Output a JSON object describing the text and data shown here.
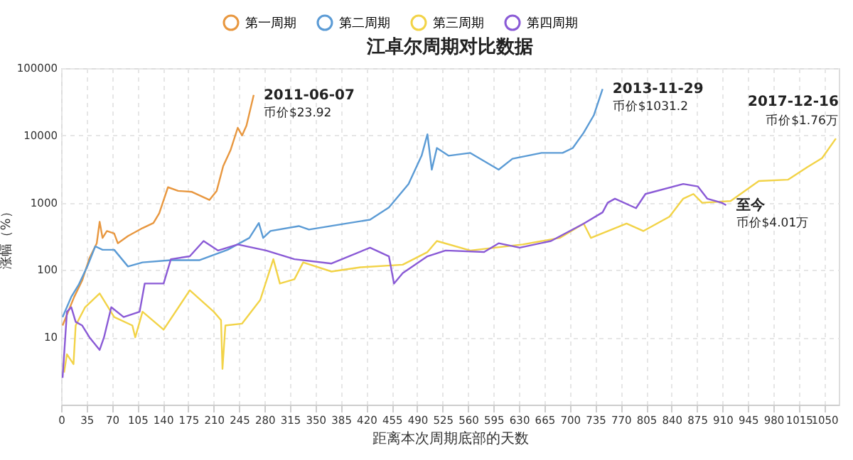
{
  "chart_data": {
    "type": "line",
    "title": "江卓尔周期对比数据",
    "xlabel": "距离本次周期底部的天数",
    "ylabel": "涨幅（%）",
    "log": "y",
    "grid": true,
    "legend": "top",
    "marker": "none",
    "line_style": "solid",
    "xlim": [
      0,
      1070
    ],
    "xticks": [
      0,
      35,
      70,
      105,
      140,
      175,
      210,
      245,
      280,
      315,
      350,
      385,
      420,
      455,
      490,
      525,
      560,
      595,
      630,
      665,
      700,
      735,
      770,
      805,
      840,
      875,
      910,
      945,
      980,
      1015,
      1050
    ],
    "ylim": [
      1,
      100000
    ],
    "yticks": [
      {
        "value": 1,
        "label": null
      },
      10,
      100,
      1000,
      10000,
      100000
    ],
    "series": [
      {
        "name": "第一周期",
        "color": "#e8973f",
        "x": [
          2,
          18,
          29,
          39,
          49,
          53,
          57,
          63,
          73,
          78,
          92,
          112,
          127,
          135,
          147,
          161,
          180,
          204,
          214,
          223,
          233,
          243,
          249,
          255,
          265
        ],
        "values": [
          15,
          40,
          70,
          150,
          250,
          520,
          300,
          380,
          350,
          250,
          320,
          420,
          500,
          700,
          1700,
          1500,
          1450,
          1100,
          1500,
          3500,
          6000,
          13000,
          10000,
          14000,
          40000
        ]
      },
      {
        "name": "第二周期",
        "color": "#5b9bd5",
        "x": [
          2,
          14,
          24,
          37,
          47,
          57,
          73,
          92,
          112,
          151,
          190,
          229,
          259,
          272,
          278,
          288,
          327,
          341,
          386,
          425,
          451,
          478,
          496,
          504,
          510,
          517,
          533,
          563,
          602,
          621,
          661,
          690,
          704,
          719,
          733,
          745
        ],
        "values": [
          20,
          40,
          60,
          120,
          225,
          200,
          200,
          113,
          130,
          140,
          140,
          200,
          300,
          500,
          300,
          380,
          450,
          400,
          480,
          560,
          850,
          1900,
          5000,
          10400,
          3100,
          6500,
          5000,
          5500,
          3100,
          4500,
          5500,
          5500,
          6500,
          11000,
          20000,
          49000
        ]
      },
      {
        "name": "第三周期",
        "color": "#f2d347",
        "x": [
          4,
          8,
          17,
          20,
          33,
          53,
          73,
          98,
          102,
          112,
          141,
          177,
          210,
          220,
          222,
          226,
          249,
          274,
          292,
          301,
          321,
          333,
          372,
          412,
          470,
          504,
          517,
          563,
          635,
          686,
          719,
          729,
          778,
          801,
          837,
          856,
          870,
          882,
          921,
          960,
          1000,
          1027,
          1047,
          1066
        ],
        "values": [
          3,
          5.6,
          4,
          15,
          28,
          45,
          20,
          15,
          10,
          24,
          13,
          50,
          24,
          18,
          3.4,
          15,
          16,
          36,
          145,
          63,
          73,
          130,
          95,
          110,
          120,
          185,
          270,
          195,
          240,
          300,
          490,
          300,
          490,
          380,
          620,
          1150,
          1350,
          1000,
          1060,
          2100,
          2200,
          3400,
          4600,
          9000
        ]
      },
      {
        "name": "第四周期",
        "color": "#8a5ad6",
        "x": [
          2,
          8,
          14,
          20,
          29,
          39,
          53,
          59,
          69,
          86,
          108,
          115,
          141,
          151,
          177,
          196,
          216,
          243,
          282,
          321,
          372,
          425,
          451,
          458,
          470,
          504,
          529,
          582,
          602,
          631,
          674,
          719,
          745,
          752,
          762,
          791,
          804,
          856,
          876,
          889,
          909,
          915
        ],
        "values": [
          2.5,
          24,
          28,
          17,
          15,
          10,
          6.5,
          10,
          28,
          20,
          24,
          63,
          63,
          145,
          160,
          270,
          195,
          240,
          195,
          145,
          125,
          215,
          160,
          63,
          90,
          160,
          195,
          185,
          250,
          215,
          270,
          490,
          720,
          1000,
          1150,
          830,
          1350,
          1900,
          1750,
          1150,
          1000,
          920
        ]
      }
    ],
    "annotations": [
      {
        "text": "2011-06-07",
        "x": 265,
        "y": 40000
      },
      {
        "text": "币价$23.92",
        "x": 265,
        "y": 40000
      },
      {
        "text": "2013-11-29",
        "x": 745,
        "y": 49000
      },
      {
        "text": "币价$1031.2",
        "x": 745,
        "y": 49000
      },
      {
        "text": "2017-12-16",
        "x": 1066,
        "y": 9000
      },
      {
        "text": "币价$1.76万",
        "x": 1066,
        "y": 9000
      },
      {
        "text": "至今",
        "x": 915,
        "y": 920
      },
      {
        "text": "币价$4.01万",
        "x": 915,
        "y": 920
      }
    ]
  }
}
